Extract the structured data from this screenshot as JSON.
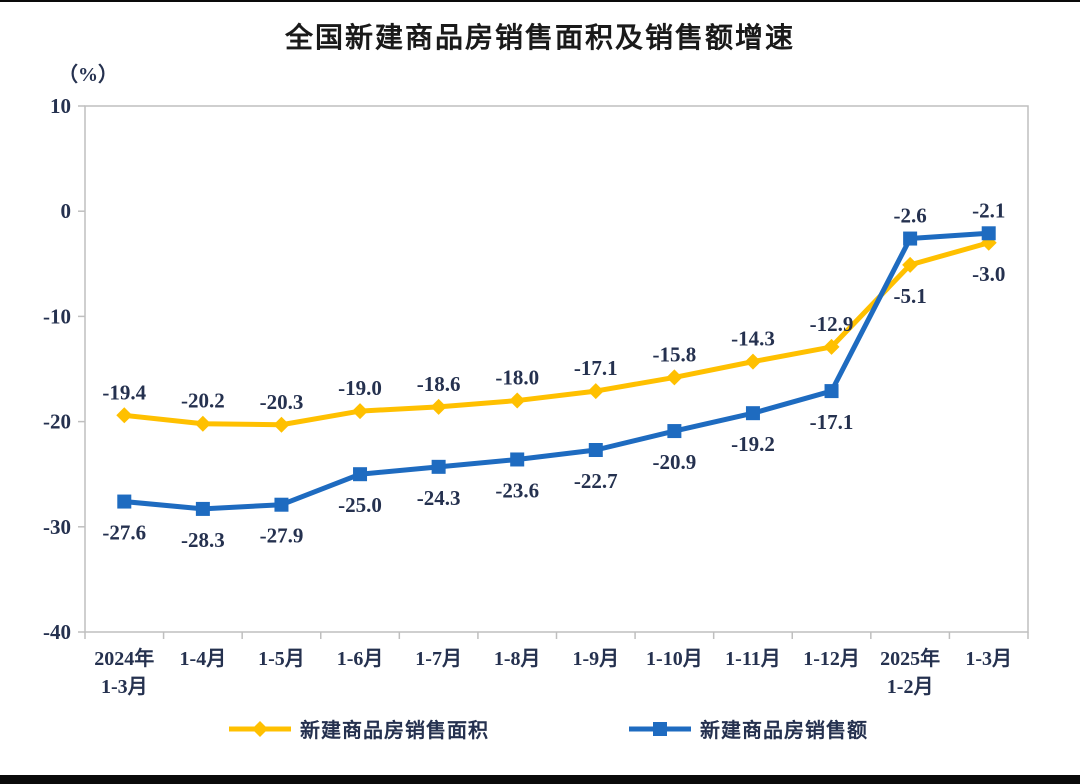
{
  "chart_data": {
    "type": "line",
    "title": "全国新建商品房销售面积及销售额增速",
    "y_unit": "（%）",
    "ylim": [
      -40,
      10
    ],
    "y_ticks": [
      10,
      0,
      -10,
      -20,
      -30,
      -40
    ],
    "grid": false,
    "legend_position": "bottom",
    "categories": [
      "2024年\n1-3月",
      "1-4月",
      "1-5月",
      "1-6月",
      "1-7月",
      "1-8月",
      "1-9月",
      "1-10月",
      "1-11月",
      "1-12月",
      "2025年\n1-2月",
      "1-3月"
    ],
    "series": [
      {
        "name": "新建商品房销售面积",
        "color": "#FFC000",
        "marker": "diamond",
        "values": [
          -19.4,
          -20.2,
          -20.3,
          -19.0,
          -18.6,
          -18.0,
          -17.1,
          -15.8,
          -14.3,
          -12.9,
          -5.1,
          -3.0
        ],
        "label_side": "above",
        "label_side_overrides": {
          "10": "below",
          "11": "below"
        }
      },
      {
        "name": "新建商品房销售额",
        "color": "#1E6BC0",
        "marker": "square",
        "values": [
          -27.6,
          -28.3,
          -27.9,
          -25.0,
          -24.3,
          -23.6,
          -22.7,
          -20.9,
          -19.2,
          -17.1,
          -2.6,
          -2.1
        ],
        "label_side": "below",
        "label_side_overrides": {
          "10": "above",
          "11": "above"
        }
      }
    ],
    "colors": {
      "title_text": "#1a1a1a",
      "axis_line": "#bfbfbf",
      "tick_text": "#25314f",
      "data_label_text": "#25314f",
      "legend_text": "#25314f"
    }
  }
}
